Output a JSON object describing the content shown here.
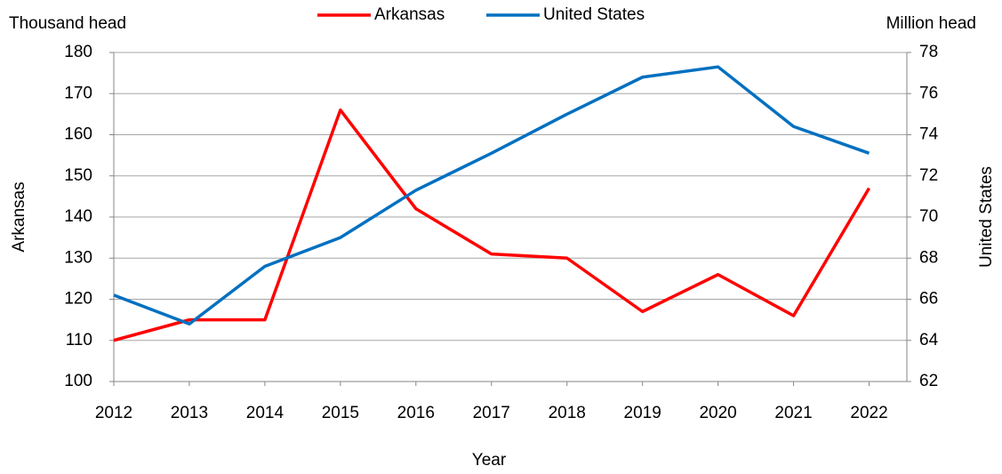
{
  "chart_data": {
    "type": "line",
    "left_unit": "Thousand head",
    "right_unit": "Million head",
    "xlabel": "Year",
    "ylabel": "Arkansas",
    "y2label": "United States",
    "categories": [
      "2012",
      "2013",
      "2014",
      "2015",
      "2016",
      "2017",
      "2018",
      "2019",
      "2020",
      "2021",
      "2022"
    ],
    "series": [
      {
        "name": "Arkansas",
        "color": "#ff0000",
        "axis": "y",
        "values": [
          110,
          115,
          115,
          166,
          142,
          131,
          130,
          117,
          126,
          116,
          147
        ]
      },
      {
        "name": "United States",
        "color": "#0070c0",
        "axis": "y2",
        "values": [
          66.2,
          64.8,
          67.6,
          69.0,
          71.3,
          73.1,
          75.0,
          76.8,
          77.3,
          74.4,
          73.1
        ]
      }
    ],
    "ylim": [
      100,
      180
    ],
    "yticks": [
      100,
      110,
      120,
      130,
      140,
      150,
      160,
      170,
      180
    ],
    "y2lim": [
      62,
      78
    ],
    "y2ticks": [
      62,
      64,
      66,
      68,
      70,
      72,
      74,
      76,
      78
    ],
    "grid": true,
    "legend": "top"
  }
}
